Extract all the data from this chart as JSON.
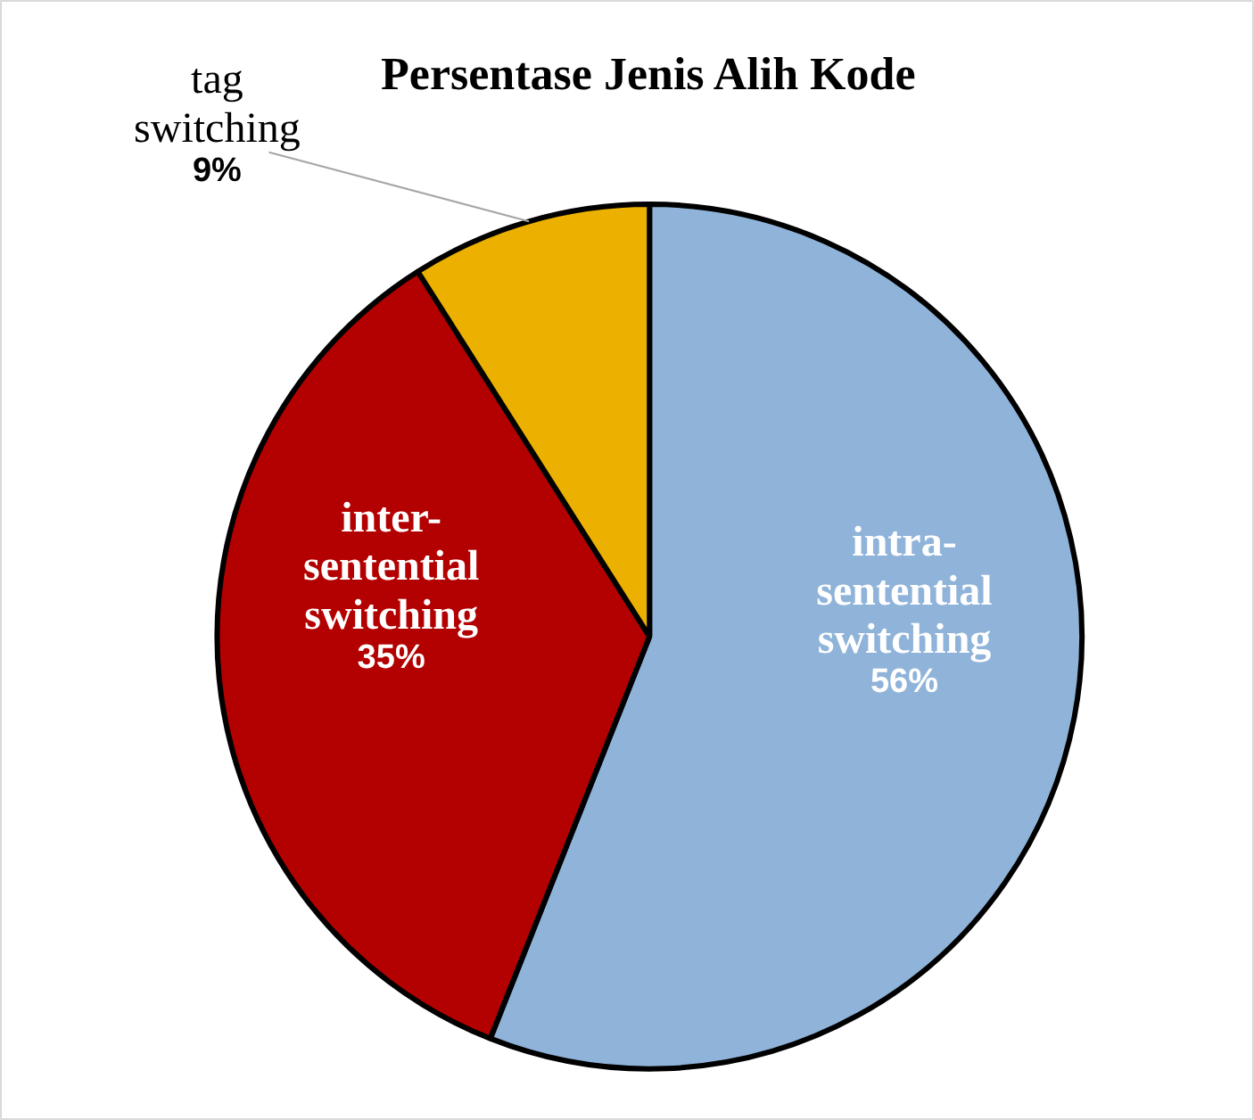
{
  "chart_data": {
    "type": "pie",
    "title": "Persentase Jenis Alih Kode",
    "categories": [
      "intra-\nsentential\nswitching",
      "inter-\nsentential\nswitching",
      "tag\nswitching"
    ],
    "values": [
      56,
      35,
      9
    ],
    "colors": [
      "#8fb3d9",
      "#b30000",
      "#ebb000"
    ],
    "value_labels": [
      "56%",
      "35%",
      "9%"
    ]
  }
}
